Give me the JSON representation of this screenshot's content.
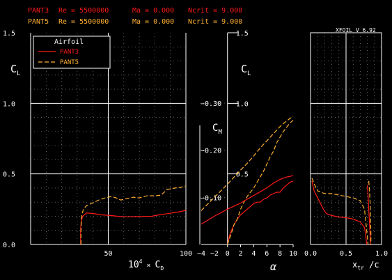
{
  "colors": {
    "background": "#000000",
    "frame": "#ffffff",
    "grid": "#9a9a9a",
    "series1": "#ff1a1a",
    "series2": "#ffb030"
  },
  "header": {
    "rows": [
      {
        "name": "PANT3",
        "re": "Re = 5500000",
        "ma": "Ma = 0.000",
        "ncrit": "Ncrit = 9.000"
      },
      {
        "name": "PANT5",
        "re": "Re = 5500000",
        "ma": "Ma = 0.000",
        "ncrit": "Ncrit = 9.000"
      }
    ]
  },
  "version": "XFOIL V 6.92",
  "legend": {
    "title": "Airfoil",
    "entries": [
      "PANT3",
      "PANT5"
    ]
  },
  "chart_data": [
    {
      "type": "line",
      "name": "drag-polar",
      "ylabel": "C_L",
      "xlabel": "10^4 × C_D",
      "xlim": [
        0,
        100
      ],
      "ylim": [
        0,
        1.5
      ],
      "xticks": [
        {
          "v": 50,
          "label": "50"
        },
        {
          "v": 100,
          "label": "100"
        }
      ],
      "yticks": [
        {
          "v": 0.0,
          "label": "0.0"
        },
        {
          "v": 0.5,
          "label": "0.5"
        },
        {
          "v": 1.0,
          "label": "1.0"
        },
        {
          "v": 1.5,
          "label": "1.5"
        }
      ],
      "series": [
        {
          "name": "PANT3",
          "points": [
            [
              32.2,
              0.0
            ],
            [
              32.2,
              0.1
            ],
            [
              32.5,
              0.16
            ],
            [
              33.5,
              0.2
            ],
            [
              36,
              0.223
            ],
            [
              40,
              0.22
            ],
            [
              45,
              0.21
            ],
            [
              52,
              0.205
            ],
            [
              56,
              0.2
            ],
            [
              62,
              0.196
            ],
            [
              68,
              0.198
            ],
            [
              73,
              0.198
            ],
            [
              78,
              0.2
            ],
            [
              83,
              0.21
            ],
            [
              88,
              0.218
            ],
            [
              92,
              0.225
            ],
            [
              96,
              0.232
            ],
            [
              100,
              0.242
            ]
          ]
        },
        {
          "name": "PANT5",
          "points": [
            [
              32.4,
              0.0
            ],
            [
              32.4,
              0.1
            ],
            [
              32.8,
              0.2
            ],
            [
              34,
              0.25
            ],
            [
              36,
              0.275
            ],
            [
              40,
              0.295
            ],
            [
              45,
              0.32
            ],
            [
              48,
              0.33
            ],
            [
              52,
              0.34
            ],
            [
              55,
              0.33
            ],
            [
              58,
              0.315
            ],
            [
              62,
              0.325
            ],
            [
              66,
              0.335
            ],
            [
              70,
              0.33
            ],
            [
              75,
              0.345
            ],
            [
              80,
              0.345
            ],
            [
              84,
              0.35
            ],
            [
              88,
              0.39
            ],
            [
              93,
              0.4
            ],
            [
              97,
              0.405
            ],
            [
              100,
              0.415
            ]
          ]
        }
      ]
    },
    {
      "type": "line",
      "name": "lift-and-moment-vs-alpha",
      "ylabel": "C_L",
      "y2label": "C_M",
      "xlabel": "α",
      "xlim": [
        -4,
        10
      ],
      "ylim": [
        0,
        1.5
      ],
      "cm_lim": [
        0,
        -0.3
      ],
      "xticks": [
        {
          "v": -4,
          "label": "−4"
        },
        {
          "v": -2,
          "label": "−2"
        },
        {
          "v": 0,
          "label": "0"
        },
        {
          "v": 2,
          "label": "2"
        },
        {
          "v": 4,
          "label": "4"
        },
        {
          "v": 6,
          "label": "6"
        },
        {
          "v": 8,
          "label": "8"
        },
        {
          "v": 10,
          "label": "10"
        }
      ],
      "yticks": [
        {
          "v": 0.5,
          "label": "0.5"
        },
        {
          "v": 1.0,
          "label": "1.0"
        },
        {
          "v": 1.5,
          "label": "1.5"
        }
      ],
      "cmticks": [
        {
          "v": -0.1,
          "label": "−0.10"
        },
        {
          "v": -0.2,
          "label": "−0.20"
        },
        {
          "v": -0.3,
          "label": "−0.30"
        }
      ],
      "cl_series": [
        {
          "name": "PANT3",
          "points": [
            [
              0,
              0.0
            ],
            [
              0.3,
              0.06
            ],
            [
              0.6,
              0.1
            ],
            [
              1,
              0.14
            ],
            [
              1.5,
              0.18
            ],
            [
              2,
              0.21
            ],
            [
              2.5,
              0.23
            ],
            [
              3,
              0.25
            ],
            [
              3.5,
              0.27
            ],
            [
              4,
              0.29
            ],
            [
              4.5,
              0.3
            ],
            [
              5,
              0.3
            ],
            [
              5.5,
              0.32
            ],
            [
              6,
              0.33
            ],
            [
              6.5,
              0.35
            ],
            [
              7,
              0.36
            ],
            [
              7.5,
              0.37
            ],
            [
              8,
              0.37
            ],
            [
              8.5,
              0.4
            ],
            [
              9,
              0.42
            ],
            [
              9.5,
              0.44
            ],
            [
              10,
              0.45
            ]
          ]
        },
        {
          "name": "PANT5",
          "points": [
            [
              0,
              0.0
            ],
            [
              0.3,
              0.04
            ],
            [
              0.6,
              0.08
            ],
            [
              1,
              0.14
            ],
            [
              1.5,
              0.18
            ],
            [
              2,
              0.25
            ],
            [
              2.5,
              0.3
            ],
            [
              3,
              0.34
            ],
            [
              3.5,
              0.37
            ],
            [
              4,
              0.4
            ],
            [
              4.5,
              0.44
            ],
            [
              5,
              0.48
            ],
            [
              5.5,
              0.52
            ],
            [
              6,
              0.57
            ],
            [
              6.5,
              0.62
            ],
            [
              7,
              0.66
            ],
            [
              7.5,
              0.72
            ],
            [
              8,
              0.76
            ],
            [
              8.5,
              0.8
            ],
            [
              9,
              0.83
            ],
            [
              9.5,
              0.86
            ],
            [
              10,
              0.88
            ]
          ]
        }
      ],
      "cm_series": [
        {
          "name": "PANT3",
          "points": [
            [
              -4,
              -0.043
            ],
            [
              -2,
              -0.06
            ],
            [
              0,
              -0.075
            ],
            [
              2,
              -0.088
            ],
            [
              3,
              -0.096
            ],
            [
              4,
              -0.104
            ],
            [
              5,
              -0.112
            ],
            [
              6,
              -0.12
            ],
            [
              7,
              -0.13
            ],
            [
              8,
              -0.138
            ],
            [
              9,
              -0.143
            ],
            [
              10,
              -0.146
            ]
          ]
        },
        {
          "name": "PANT5",
          "points": [
            [
              -4,
              -0.072
            ],
            [
              -2,
              -0.1
            ],
            [
              0,
              -0.128
            ],
            [
              2,
              -0.158
            ],
            [
              3,
              -0.172
            ],
            [
              4,
              -0.188
            ],
            [
              5,
              -0.205
            ],
            [
              6,
              -0.22
            ],
            [
              7,
              -0.235
            ],
            [
              8,
              -0.25
            ],
            [
              9,
              -0.262
            ],
            [
              10,
              -0.272
            ]
          ]
        }
      ]
    },
    {
      "type": "line",
      "name": "transition-location",
      "ylabel": "",
      "xlabel": "x_tr / c",
      "xlim": [
        0,
        1
      ],
      "ylim": [
        0,
        1.5
      ],
      "xticks": [
        {
          "v": 0,
          "label": "0.0"
        },
        {
          "v": 0.5,
          "label": "0.5"
        },
        {
          "v": 1.0,
          "label": "1.0"
        }
      ],
      "series": [
        {
          "name": "PANT3",
          "points": [
            [
              0.02,
              0.45
            ],
            [
              0.05,
              0.38
            ],
            [
              0.1,
              0.33
            ],
            [
              0.14,
              0.29
            ],
            [
              0.18,
              0.25
            ],
            [
              0.22,
              0.22
            ],
            [
              0.3,
              0.205
            ],
            [
              0.4,
              0.195
            ],
            [
              0.5,
              0.19
            ],
            [
              0.6,
              0.18
            ],
            [
              0.7,
              0.16
            ],
            [
              0.76,
              0.12
            ],
            [
              0.78,
              0.05
            ],
            [
              0.79,
              0.0
            ]
          ]
        },
        {
          "name": "PANT5",
          "points": [
            [
              0.02,
              0.47
            ],
            [
              0.06,
              0.42
            ],
            [
              0.1,
              0.38
            ],
            [
              0.15,
              0.37
            ],
            [
              0.2,
              0.36
            ],
            [
              0.3,
              0.36
            ],
            [
              0.4,
              0.35
            ],
            [
              0.5,
              0.34
            ],
            [
              0.6,
              0.33
            ],
            [
              0.7,
              0.31
            ],
            [
              0.76,
              0.25
            ],
            [
              0.78,
              0.15
            ],
            [
              0.8,
              0.05
            ],
            [
              0.81,
              0.0
            ]
          ]
        },
        {
          "name": "PANT3-lower",
          "points": [
            [
              0.8,
              0.42
            ],
            [
              0.81,
              0.35
            ],
            [
              0.82,
              0.25
            ],
            [
              0.83,
              0.15
            ],
            [
              0.84,
              0.05
            ],
            [
              0.84,
              0.0
            ]
          ]
        },
        {
          "name": "PANT5-lower",
          "points": [
            [
              0.82,
              0.45
            ],
            [
              0.83,
              0.38
            ],
            [
              0.84,
              0.28
            ],
            [
              0.845,
              0.18
            ],
            [
              0.85,
              0.08
            ],
            [
              0.85,
              0.0
            ]
          ]
        }
      ]
    }
  ]
}
